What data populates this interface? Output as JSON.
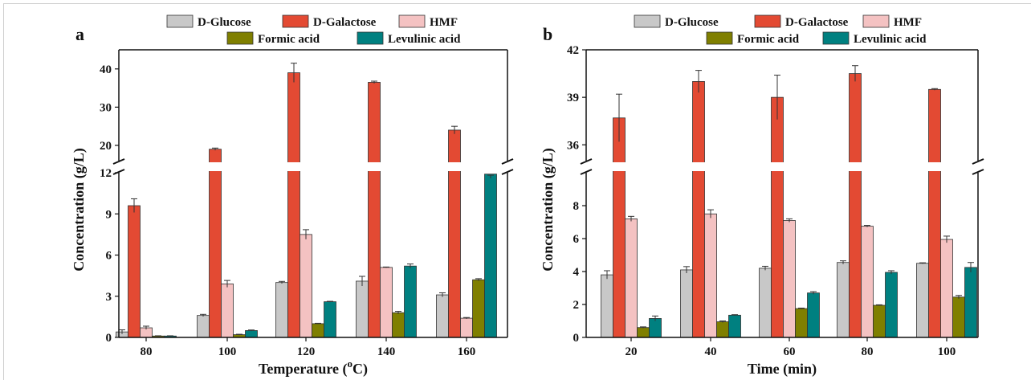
{
  "chart_data": [
    {
      "panel": "a",
      "type": "bar",
      "categories": [
        "80",
        "100",
        "120",
        "140",
        "160"
      ],
      "xlabel": "Temperature (",
      "xlabel_sup": "o",
      "xlabel_tail": "C)",
      "ylabel": "Concentration (g/L)",
      "axis_break": true,
      "lower_ylim": [
        0,
        12
      ],
      "lower_yticks": [
        "0",
        "3",
        "6",
        "9",
        "12"
      ],
      "upper_ylim": [
        16,
        45
      ],
      "upper_yticks": [
        "20",
        "30",
        "40"
      ],
      "legend_position": "top",
      "series": [
        {
          "name": "D-Glucose",
          "color": "#c8c8c8",
          "values": [
            0.4,
            1.6,
            4.0,
            4.1,
            3.1
          ],
          "errors": [
            0.15,
            0.08,
            0.08,
            0.35,
            0.15
          ]
        },
        {
          "name": "D-Galactose",
          "color": "#e34a33",
          "values": [
            9.6,
            19.0,
            39.0,
            36.5,
            24.0
          ],
          "errors": [
            0.5,
            0.3,
            2.5,
            0.3,
            1.0
          ]
        },
        {
          "name": "HMF",
          "color": "#f4c2c2",
          "values": [
            0.7,
            3.9,
            7.5,
            5.1,
            1.4
          ],
          "errors": [
            0.12,
            0.25,
            0.35,
            0.03,
            0.05
          ]
        },
        {
          "name": "Formic acid",
          "color": "#7f7f00",
          "values": [
            0.1,
            0.2,
            1.0,
            1.8,
            4.2
          ],
          "errors": [
            0.02,
            0.03,
            0.03,
            0.1,
            0.08
          ]
        },
        {
          "name": "Levulinic acid",
          "color": "#008080",
          "values": [
            0.1,
            0.5,
            2.6,
            5.2,
            11.9
          ],
          "errors": [
            0.02,
            0.04,
            0.03,
            0.15,
            0.3
          ]
        }
      ]
    },
    {
      "panel": "b",
      "type": "bar",
      "categories": [
        "20",
        "40",
        "60",
        "80",
        "100"
      ],
      "xlabel": "Time (min)",
      "ylabel": "Concentration (g/L)",
      "axis_break": true,
      "lower_ylim": [
        0,
        10
      ],
      "lower_yticks": [
        "0",
        "2",
        "4",
        "6",
        "8"
      ],
      "upper_ylim": [
        35,
        42
      ],
      "upper_yticks": [
        "36",
        "39",
        "42"
      ],
      "legend_position": "top",
      "series": [
        {
          "name": "D-Glucose",
          "color": "#c8c8c8",
          "values": [
            3.8,
            4.1,
            4.2,
            4.55,
            4.5
          ],
          "errors": [
            0.25,
            0.2,
            0.12,
            0.1,
            0.03
          ]
        },
        {
          "name": "D-Galactose",
          "color": "#e34a33",
          "values": [
            37.7,
            40.0,
            39.0,
            40.5,
            39.5
          ],
          "errors": [
            1.5,
            0.7,
            1.4,
            0.5,
            0.05
          ]
        },
        {
          "name": "HMF",
          "color": "#f4c2c2",
          "values": [
            7.2,
            7.5,
            7.1,
            6.75,
            5.95
          ],
          "errors": [
            0.15,
            0.25,
            0.1,
            0.05,
            0.2
          ]
        },
        {
          "name": "Formic acid",
          "color": "#7f7f00",
          "values": [
            0.6,
            0.95,
            1.75,
            1.95,
            2.45
          ],
          "errors": [
            0.04,
            0.05,
            0.03,
            0.03,
            0.1
          ]
        },
        {
          "name": "Levulinic acid",
          "color": "#008080",
          "values": [
            1.15,
            1.35,
            2.7,
            3.95,
            4.25
          ],
          "errors": [
            0.15,
            0.03,
            0.08,
            0.1,
            0.3
          ]
        }
      ]
    }
  ]
}
